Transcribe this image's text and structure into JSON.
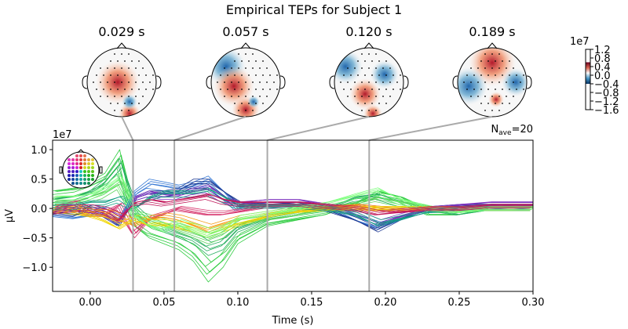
{
  "title": "Empirical TEPs for Subject 1",
  "topomaps": [
    {
      "time": 0.029,
      "label": "0.029 s"
    },
    {
      "time": 0.057,
      "label": "0.057 s"
    },
    {
      "time": 0.12,
      "label": "0.120 s"
    },
    {
      "time": 0.189,
      "label": "0.189 s"
    }
  ],
  "colorbar": {
    "scale_label": "1e7",
    "ticks": [
      "1.2",
      "0.8",
      "0.4",
      "0.0",
      "−0.4",
      "−0.8",
      "−1.2",
      "−1.6"
    ],
    "tick_values": [
      1.2,
      0.8,
      0.4,
      0.0,
      -0.4,
      -0.8,
      -1.2,
      -1.6
    ],
    "colored_range": [
      -0.4,
      0.6
    ],
    "colormap": "RdBu_r"
  },
  "nave_label": "N",
  "nave_sub": "ave",
  "nave_value": "=20",
  "chart_data": {
    "type": "line",
    "xlabel": "Time (s)",
    "ylabel": "µV",
    "y_scale_label": "1e7",
    "xlim": [
      -0.0255,
      0.3
    ],
    "ylim": [
      -1.41,
      1.16
    ],
    "xticks": [
      0.0,
      0.05,
      0.1,
      0.15,
      0.2,
      0.25,
      0.3
    ],
    "xtick_labels": [
      "0.00",
      "0.05",
      "0.10",
      "0.15",
      "0.20",
      "0.25",
      "0.30"
    ],
    "yticks": [
      1.0,
      0.5,
      0.0,
      -0.5,
      -1.0
    ],
    "ytick_labels": [
      "1.0",
      "0.5",
      "0.0",
      "−0.5",
      "−1.0"
    ],
    "grid": false,
    "legend": "sensor-location inset, top-left",
    "marker_times": [
      0.029,
      0.057,
      0.12,
      0.189
    ],
    "x": [
      -0.025,
      -0.01,
      0,
      0.01,
      0.02,
      0.03,
      0.04,
      0.05,
      0.06,
      0.07,
      0.08,
      0.09,
      0.1,
      0.12,
      0.14,
      0.16,
      0.18,
      0.195,
      0.21,
      0.23,
      0.25,
      0.27,
      0.3
    ],
    "series": [
      {
        "color": "#2ecc40",
        "values": [
          0.3,
          0.35,
          0.45,
          0.6,
          1.0,
          -0.3,
          -0.5,
          -0.6,
          -0.7,
          -0.9,
          -1.25,
          -1.0,
          -0.6,
          -0.3,
          -0.2,
          -0.1,
          0.1,
          0.3,
          0.2,
          -0.1,
          -0.1,
          0,
          0
        ]
      },
      {
        "color": "#27ae60",
        "values": [
          0.15,
          0.2,
          0.3,
          0.5,
          0.85,
          0.0,
          -0.3,
          -0.4,
          -0.5,
          -0.6,
          -0.8,
          -0.7,
          -0.4,
          -0.2,
          -0.1,
          0,
          0.2,
          0.25,
          0.1,
          0,
          -0.1,
          0,
          0
        ]
      },
      {
        "color": "#5fd35f",
        "values": [
          0.1,
          0.1,
          0.2,
          0.3,
          0.5,
          -0.1,
          -0.2,
          -0.3,
          -0.4,
          -0.5,
          -0.6,
          -0.5,
          -0.3,
          -0.2,
          -0.1,
          0,
          0.1,
          0.2,
          0.1,
          0,
          0,
          0,
          0
        ]
      },
      {
        "color": "#3a7bd5",
        "values": [
          -0.1,
          -0.15,
          -0.1,
          -0.05,
          -0.2,
          0.3,
          0.5,
          0.45,
          0.4,
          0.45,
          0.55,
          0.3,
          0.0,
          0.1,
          0.1,
          0.05,
          -0.2,
          -0.35,
          -0.2,
          -0.05,
          0,
          0.05,
          0
        ]
      },
      {
        "color": "#1f3a93",
        "values": [
          -0.05,
          -0.1,
          0,
          -0.1,
          -0.3,
          0.2,
          0.3,
          0.3,
          0.35,
          0.5,
          0.5,
          0.3,
          0.1,
          0.05,
          0.1,
          0,
          -0.2,
          -0.4,
          -0.2,
          0,
          0.05,
          0.05,
          0.05
        ]
      },
      {
        "color": "#7b2fbe",
        "values": [
          0,
          0,
          0,
          -0.1,
          -0.25,
          0.2,
          0.3,
          0.25,
          0.25,
          0.35,
          0.4,
          0.2,
          0.1,
          0.15,
          0.15,
          0.05,
          -0.1,
          -0.3,
          -0.15,
          0,
          0.05,
          0.1,
          0.1
        ]
      },
      {
        "color": "#d6336c",
        "values": [
          0,
          0.1,
          -0.1,
          -0.1,
          0.05,
          -0.5,
          -0.2,
          -0.1,
          0,
          -0.05,
          -0.1,
          -0.1,
          -0.05,
          0.05,
          0.05,
          0,
          0.05,
          0,
          -0.05,
          0,
          0,
          0,
          0
        ]
      },
      {
        "color": "#f39c12",
        "values": [
          -0.05,
          0,
          -0.1,
          -0.1,
          -0.2,
          -0.3,
          -0.2,
          -0.15,
          -0.2,
          -0.3,
          -0.4,
          -0.3,
          -0.2,
          -0.1,
          0,
          0,
          0.05,
          0,
          0,
          0,
          0,
          0,
          0
        ]
      },
      {
        "color": "#f1d600",
        "values": [
          0,
          -0.05,
          -0.1,
          -0.2,
          -0.35,
          -0.2,
          -0.3,
          -0.3,
          -0.35,
          -0.4,
          -0.5,
          -0.4,
          -0.3,
          -0.15,
          -0.05,
          0,
          0,
          0,
          0,
          0,
          0,
          0,
          0
        ]
      },
      {
        "color": "#16a085",
        "values": [
          0.05,
          0.05,
          0.1,
          0.1,
          0.2,
          0,
          0.2,
          0.3,
          0.3,
          0.3,
          0.35,
          0.2,
          0.05,
          0.05,
          0.05,
          0,
          -0.1,
          -0.3,
          -0.2,
          -0.05,
          0,
          0,
          0
        ]
      },
      {
        "color": "#7dff7d",
        "values": [
          0.2,
          0.2,
          0.25,
          0.4,
          0.6,
          -0.1,
          -0.3,
          -0.4,
          -0.3,
          -0.4,
          -0.5,
          -0.4,
          -0.2,
          -0.1,
          0,
          0.1,
          0.25,
          0.35,
          0.15,
          0,
          -0.05,
          0,
          0
        ]
      },
      {
        "color": "#c2185b",
        "values": [
          -0.05,
          0,
          0,
          -0.05,
          -0.2,
          0.1,
          0.15,
          0.1,
          0.15,
          0.2,
          0.25,
          0.15,
          0.1,
          0.1,
          0.1,
          0.05,
          0,
          -0.1,
          -0.05,
          0,
          0,
          0.05,
          0.05
        ]
      }
    ]
  }
}
